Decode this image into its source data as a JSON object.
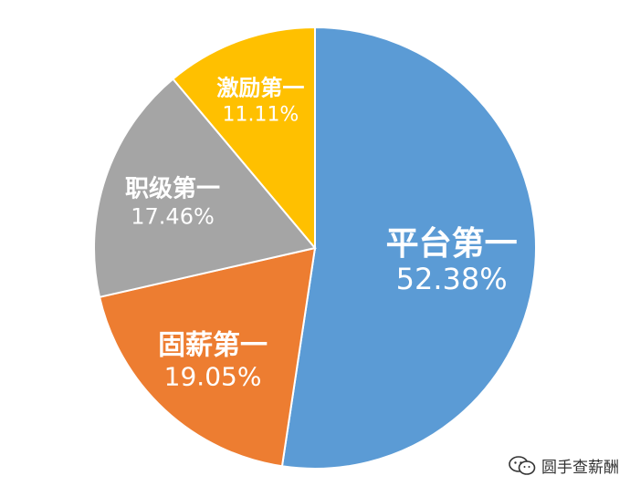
{
  "chart_data": {
    "type": "pie",
    "title": "",
    "start_angle_deg": 0,
    "direction": "clockwise",
    "slices": [
      {
        "label": "平台第一",
        "value": 52.38,
        "value_label": "52.38%",
        "color": "#5B9BD5",
        "text_color": "#ffffff"
      },
      {
        "label": "固薪第一",
        "value": 19.05,
        "value_label": "19.05%",
        "color": "#ED7D31",
        "text_color": "#ffffff"
      },
      {
        "label": "职级第一",
        "value": 17.46,
        "value_label": "17.46%",
        "color": "#A5A5A5",
        "text_color": "#ffffff"
      },
      {
        "label": "激励第一",
        "value": 11.11,
        "value_label": "11.11%",
        "color": "#FFC000",
        "text_color": "#ffffff"
      }
    ]
  },
  "watermark": {
    "text": "圆手查薪酬",
    "icon": "wechat-icon"
  }
}
